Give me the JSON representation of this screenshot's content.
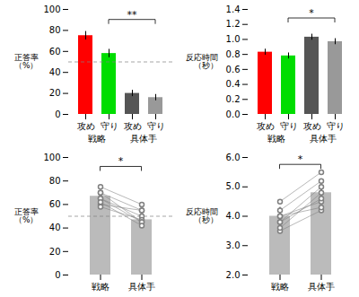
{
  "chart_data": [
    {
      "type": "bar",
      "ylabel": "正答率\n（%）",
      "categories": [
        "攻め",
        "守り",
        "攻め",
        "守り"
      ],
      "groups": [
        "戦略",
        "戦略",
        "具体手",
        "具体手"
      ],
      "values": [
        75,
        58,
        20,
        16
      ],
      "errors": [
        4,
        4,
        3,
        3
      ],
      "colors": [
        "#ff0000",
        "#00dd00",
        "#555555",
        "#999999"
      ],
      "ylim": [
        0,
        100
      ],
      "yticks": [
        0,
        20,
        40,
        60,
        80,
        100
      ],
      "hline": 50,
      "brackets": [
        {
          "from": 1,
          "to": 3,
          "y": 90,
          "label": "**"
        }
      ]
    },
    {
      "type": "bar",
      "ylabel": "反応時間\n（秒）",
      "categories": [
        "攻め",
        "守り",
        "攻め",
        "守り"
      ],
      "groups": [
        "戦略",
        "戦略",
        "具体手",
        "具体手"
      ],
      "values": [
        0.83,
        0.78,
        1.03,
        0.97
      ],
      "errors": [
        0.04,
        0.04,
        0.04,
        0.04
      ],
      "colors": [
        "#ff0000",
        "#00dd00",
        "#555555",
        "#999999"
      ],
      "ylim": [
        0,
        1.4
      ],
      "yticks": [
        {
          "value": 0,
          "label": "0.0"
        },
        0.2,
        0.4,
        0.6,
        0.8,
        {
          "value": 1,
          "label": "1.0"
        },
        1.2,
        1.4
      ],
      "brackets": [
        {
          "from": 1,
          "to": 3,
          "y": 1.28,
          "label": "*"
        }
      ]
    },
    {
      "type": "bar",
      "ylabel": "正答率\n（%）",
      "categories": [
        "戦略",
        "具体手"
      ],
      "values": [
        67,
        47
      ],
      "errors": [
        4,
        4
      ],
      "colors": [
        "#bbbbbb",
        "#bbbbbb"
      ],
      "individual_values": [
        [
          75,
          60
        ],
        [
          70,
          55
        ],
        [
          65,
          50
        ],
        [
          60,
          55
        ],
        [
          58,
          47
        ],
        [
          65,
          45
        ],
        [
          70,
          45
        ],
        [
          62,
          42
        ]
      ],
      "ylim": [
        0,
        100
      ],
      "yticks": [
        0,
        20,
        40,
        60,
        80,
        100
      ],
      "hline": 50,
      "brackets": [
        {
          "from": 0,
          "to": 1,
          "y": 92,
          "label": "*"
        }
      ]
    },
    {
      "type": "bar",
      "ylabel": "反応時間\n（秒）",
      "categories": [
        "戦略",
        "具体手"
      ],
      "values": [
        4.0,
        4.8
      ],
      "errors": [
        0.3,
        0.3
      ],
      "colors": [
        "#bbbbbb",
        "#bbbbbb"
      ],
      "individual_values": [
        [
          3.5,
          4.2
        ],
        [
          4.0,
          4.5
        ],
        [
          3.8,
          5.0
        ],
        [
          4.2,
          5.2
        ],
        [
          3.6,
          4.8
        ],
        [
          4.5,
          5.5
        ],
        [
          4.0,
          4.3
        ],
        [
          3.8,
          4.6
        ]
      ],
      "ylim": [
        2.0,
        6.0
      ],
      "yticks": [
        {
          "value": 2,
          "label": "2.0"
        },
        {
          "value": 3,
          "label": "3.0"
        },
        {
          "value": 4,
          "label": "4.0"
        },
        {
          "value": 5,
          "label": "5.0"
        },
        {
          "value": 6,
          "label": "6.0"
        }
      ],
      "brackets": [
        {
          "from": 0,
          "to": 1,
          "y": 5.75,
          "label": "*"
        }
      ]
    }
  ]
}
